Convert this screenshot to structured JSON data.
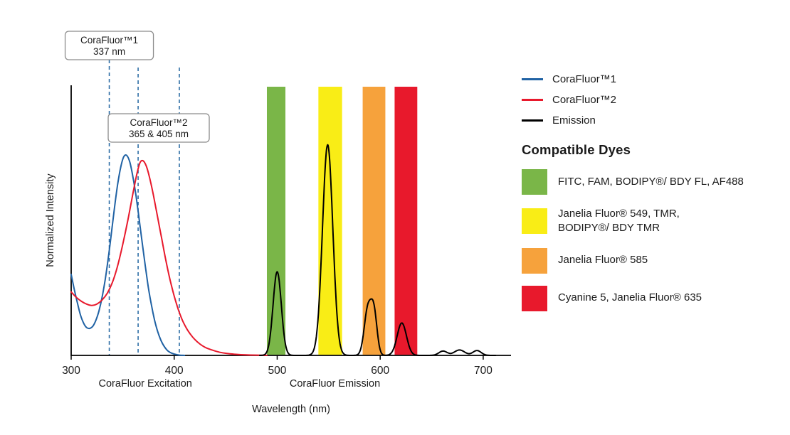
{
  "chart_data": {
    "type": "line",
    "title": "",
    "xlabel": "Wavelength (nm)",
    "ylabel": "Normalized Intensity",
    "x_ticks": [
      300,
      400,
      500,
      600,
      700
    ],
    "xlim": [
      300,
      727
    ],
    "ylim": [
      0,
      1
    ],
    "grid": false,
    "marker_line_color": "#2e6ea6",
    "section_labels": [
      {
        "text": "CoraFluor Excitation",
        "center_nm": 372
      },
      {
        "text": "CoraFluor Emission",
        "center_nm": 556
      }
    ],
    "callouts": [
      {
        "line1": "CoraFluor™1",
        "line2": "337 nm",
        "marker_lines_nm": [
          337
        ]
      },
      {
        "line1": "CoraFluor™2",
        "line2": "365 & 405 nm",
        "marker_lines_nm": [
          365,
          405
        ]
      }
    ],
    "filter_bands": [
      {
        "name": "green",
        "color": "#7ab648",
        "from_nm": 490,
        "to_nm": 508
      },
      {
        "name": "yellow",
        "color": "#f9ed16",
        "from_nm": 540,
        "to_nm": 563
      },
      {
        "name": "orange",
        "color": "#f6a23c",
        "from_nm": 583,
        "to_nm": 605
      },
      {
        "name": "red",
        "color": "#e8192c",
        "from_nm": 614,
        "to_nm": 636
      }
    ],
    "series": [
      {
        "name": "CoraFluor™1",
        "color": "#2062a4",
        "kind": "excitation",
        "points": [
          [
            300,
            0.3
          ],
          [
            303,
            0.245
          ],
          [
            306,
            0.195
          ],
          [
            309,
            0.15
          ],
          [
            312,
            0.12
          ],
          [
            315,
            0.103
          ],
          [
            318,
            0.1
          ],
          [
            321,
            0.108
          ],
          [
            324,
            0.13
          ],
          [
            327,
            0.165
          ],
          [
            330,
            0.215
          ],
          [
            333,
            0.28
          ],
          [
            336,
            0.36
          ],
          [
            339,
            0.45
          ],
          [
            342,
            0.545
          ],
          [
            345,
            0.63
          ],
          [
            348,
            0.695
          ],
          [
            351,
            0.735
          ],
          [
            354,
            0.74
          ],
          [
            357,
            0.715
          ],
          [
            360,
            0.66
          ],
          [
            363,
            0.59
          ],
          [
            366,
            0.505
          ],
          [
            369,
            0.415
          ],
          [
            372,
            0.33
          ],
          [
            375,
            0.25
          ],
          [
            378,
            0.185
          ],
          [
            381,
            0.13
          ],
          [
            384,
            0.088
          ],
          [
            387,
            0.057
          ],
          [
            390,
            0.035
          ],
          [
            393,
            0.02
          ],
          [
            396,
            0.011
          ],
          [
            400,
            0.005
          ],
          [
            405,
            0.001
          ],
          [
            410,
            0
          ]
        ]
      },
      {
        "name": "CoraFluor™2",
        "color": "#e8192c",
        "kind": "excitation",
        "points": [
          [
            300,
            0.235
          ],
          [
            305,
            0.215
          ],
          [
            310,
            0.2
          ],
          [
            315,
            0.19
          ],
          [
            320,
            0.185
          ],
          [
            325,
            0.19
          ],
          [
            330,
            0.205
          ],
          [
            335,
            0.23
          ],
          [
            340,
            0.27
          ],
          [
            345,
            0.33
          ],
          [
            350,
            0.41
          ],
          [
            355,
            0.5
          ],
          [
            360,
            0.6
          ],
          [
            364,
            0.675
          ],
          [
            367,
            0.715
          ],
          [
            370,
            0.72
          ],
          [
            373,
            0.7
          ],
          [
            376,
            0.66
          ],
          [
            380,
            0.59
          ],
          [
            384,
            0.51
          ],
          [
            388,
            0.43
          ],
          [
            392,
            0.35
          ],
          [
            396,
            0.28
          ],
          [
            400,
            0.22
          ],
          [
            404,
            0.17
          ],
          [
            408,
            0.13
          ],
          [
            412,
            0.1
          ],
          [
            416,
            0.077
          ],
          [
            420,
            0.059
          ],
          [
            425,
            0.042
          ],
          [
            430,
            0.03
          ],
          [
            435,
            0.022
          ],
          [
            440,
            0.016
          ],
          [
            445,
            0.011
          ],
          [
            450,
            0.008
          ],
          [
            460,
            0.004
          ],
          [
            470,
            0.002
          ],
          [
            480,
            0.001
          ],
          [
            490,
            0
          ]
        ]
      },
      {
        "name": "Emission",
        "color": "#000000",
        "kind": "emission",
        "baseline_from_nm": 483,
        "to_nm": 712,
        "peaks": [
          {
            "center_nm": 500,
            "height": 0.31,
            "sigma_nm": 4
          },
          {
            "center_nm": 549,
            "height": 0.78,
            "sigma_nm": 5
          },
          {
            "center_nm": 588,
            "height": 0.17,
            "sigma_nm": 3.5
          },
          {
            "center_nm": 594,
            "height": 0.15,
            "sigma_nm": 3
          },
          {
            "center_nm": 621,
            "height": 0.12,
            "sigma_nm": 4.5
          },
          {
            "center_nm": 661,
            "height": 0.016,
            "sigma_nm": 4
          },
          {
            "center_nm": 677,
            "height": 0.02,
            "sigma_nm": 5
          },
          {
            "center_nm": 694,
            "height": 0.018,
            "sigma_nm": 4
          }
        ]
      }
    ]
  },
  "legend": {
    "items": [
      {
        "label": "CoraFluor™1",
        "color": "#2062a4"
      },
      {
        "label": "CoraFluor™2",
        "color": "#e8192c"
      },
      {
        "label": "Emission",
        "color": "#000000"
      }
    ]
  },
  "compatible_dyes": {
    "heading": "Compatible Dyes",
    "items": [
      {
        "color": "#7ab648",
        "label": "FITC, FAM, BODIPY®/ BDY FL, AF488"
      },
      {
        "color": "#f9ed16",
        "label": "Janelia Fluor® 549, TMR,\nBODIPY®/ BDY TMR"
      },
      {
        "color": "#f6a23c",
        "label": "Janelia Fluor® 585"
      },
      {
        "color": "#e8192c",
        "label": "Cyanine 5, Janelia Fluor® 635"
      }
    ]
  }
}
